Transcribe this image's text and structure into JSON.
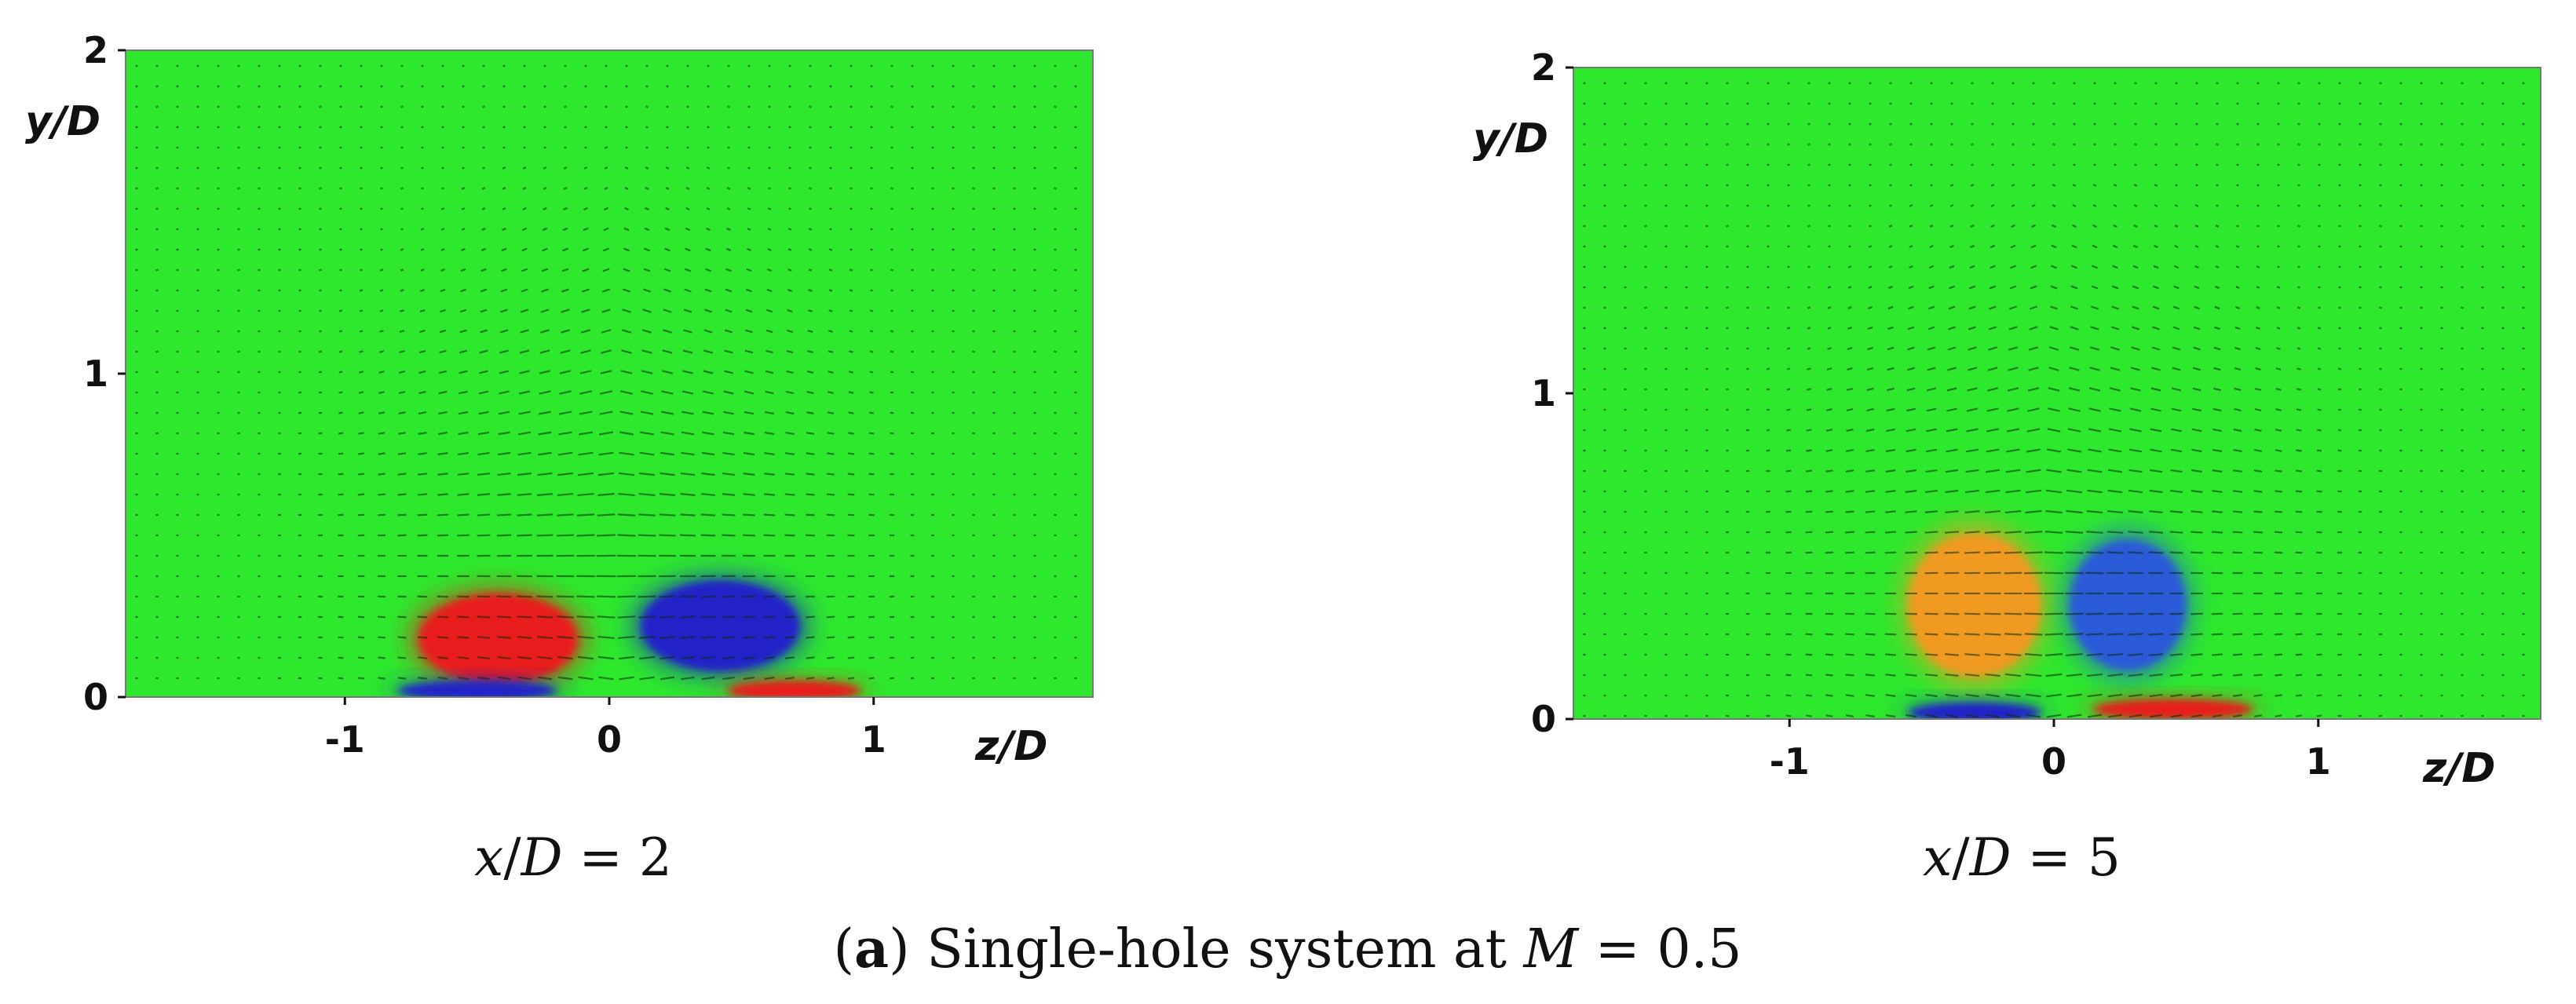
{
  "chart_data": [
    {
      "type": "heatmap",
      "panel_label": "x/D = 2",
      "xlabel": "z/D",
      "ylabel": "y/D",
      "x_ticks": [
        -1,
        0,
        1
      ],
      "y_ticks": [
        0,
        1,
        2
      ],
      "xlim": [
        -1.5,
        1.5
      ],
      "ylim": [
        0,
        2
      ],
      "background_color": "#2ee82e",
      "vortices": [
        {
          "sign": "positive",
          "color": "#e81a1a",
          "z": -0.42,
          "y": 0.18,
          "rz": 0.3,
          "ry": 0.14
        },
        {
          "sign": "negative",
          "color": "#2020c8",
          "z": 0.42,
          "y": 0.22,
          "rz": 0.3,
          "ry": 0.14
        },
        {
          "sign": "negative",
          "color": "#2020c8",
          "z": -0.5,
          "y": 0.02,
          "rz": 0.3,
          "ry": 0.03
        },
        {
          "sign": "positive",
          "color": "#e81a1a",
          "z": 0.7,
          "y": 0.02,
          "rz": 0.25,
          "ry": 0.03
        }
      ]
    },
    {
      "type": "heatmap",
      "panel_label": "x/D = 5",
      "xlabel": "z/D",
      "ylabel": "y/D",
      "x_ticks": [
        -1,
        0,
        1
      ],
      "y_ticks": [
        0,
        1,
        2
      ],
      "xlim": [
        -1.5,
        1.5
      ],
      "ylim": [
        0,
        2
      ],
      "background_color": "#2ee82e",
      "vortices": [
        {
          "sign": "positive",
          "color": "#f09a20",
          "z": -0.3,
          "y": 0.35,
          "rz": 0.25,
          "ry": 0.22
        },
        {
          "sign": "negative",
          "color": "#2a5ad8",
          "z": 0.28,
          "y": 0.35,
          "rz": 0.22,
          "ry": 0.2
        },
        {
          "sign": "negative",
          "color": "#2020c8",
          "z": -0.3,
          "y": 0.02,
          "rz": 0.25,
          "ry": 0.03
        },
        {
          "sign": "positive",
          "color": "#e81a1a",
          "z": 0.45,
          "y": 0.03,
          "rz": 0.3,
          "ry": 0.03
        }
      ]
    }
  ],
  "caption": {
    "letter": "a",
    "text": " Single-hole system at ",
    "variable": "M",
    "value": " = 0.5"
  }
}
